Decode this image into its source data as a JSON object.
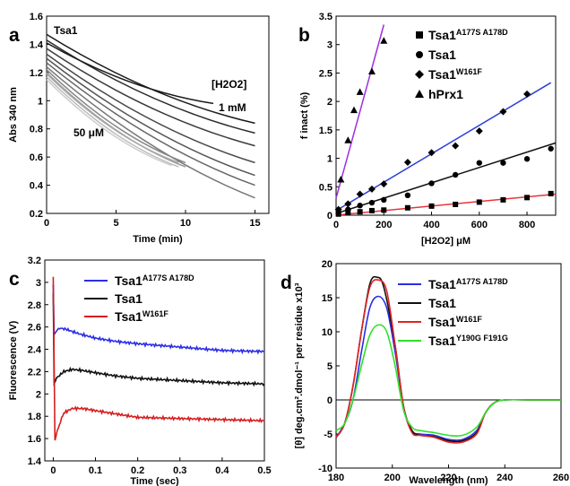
{
  "chart_data": [
    {
      "panel": "a",
      "type": "line",
      "title": "Tsa1",
      "xlabel": "Time (min)",
      "ylabel": "Abs 340 nm",
      "xlim": [
        0,
        16
      ],
      "ylim": [
        0.2,
        1.6
      ],
      "xticks": [
        0,
        5,
        10,
        15
      ],
      "yticks": [
        0.2,
        0.4,
        0.6,
        0.8,
        1.0,
        1.2,
        1.4,
        1.6
      ],
      "yticklabels": [
        "0.2",
        "0.4",
        "0.6",
        "0.8",
        "1",
        "1.2",
        "1.4",
        "1.6"
      ],
      "grid": false,
      "annotations": {
        "conc_header": "[H2O2]",
        "conc_high": "1 mM",
        "conc_low": "50 μM"
      },
      "series": [
        {
          "color": "#1a1a1a",
          "values": [
            [
              0,
              1.47
            ],
            [
              15,
              0.84
            ]
          ]
        },
        {
          "color": "#2b2b2b",
          "values": [
            [
              0,
              1.43
            ],
            [
              15,
              0.77
            ]
          ]
        },
        {
          "color": "#3a3a3a",
          "values": [
            [
              0,
              1.37
            ],
            [
              15,
              0.68
            ]
          ]
        },
        {
          "color": "#4a4a4a",
          "values": [
            [
              0,
              1.33
            ],
            [
              15,
              0.56
            ]
          ]
        },
        {
          "color": "#555555",
          "values": [
            [
              0,
              1.3
            ],
            [
              15,
              0.47
            ]
          ]
        },
        {
          "color": "#666666",
          "values": [
            [
              0,
              1.27
            ],
            [
              15,
              0.4
            ]
          ]
        },
        {
          "color": "#777777",
          "values": [
            [
              0,
              1.24
            ],
            [
              15,
              0.31
            ]
          ]
        },
        {
          "color": "#1a1a1a",
          "values": [
            [
              0,
              1.41
            ],
            [
              12,
              0.98
            ]
          ]
        },
        {
          "color": "#888888",
          "values": [
            [
              0,
              1.22
            ],
            [
              10,
              0.56
            ]
          ]
        },
        {
          "color": "#9a9a9a",
          "values": [
            [
              0,
              1.2
            ],
            [
              10,
              0.53
            ]
          ]
        },
        {
          "color": "#aaaaaa",
          "values": [
            [
              0,
              1.19
            ],
            [
              9.5,
              0.56
            ]
          ]
        },
        {
          "color": "#bbbbbb",
          "values": [
            [
              0,
              1.17
            ],
            [
              9.5,
              0.53
            ]
          ]
        },
        {
          "color": "#cccccc",
          "values": [
            [
              0,
              1.15
            ],
            [
              9,
              0.54
            ]
          ]
        }
      ]
    },
    {
      "panel": "b",
      "type": "scatter",
      "xlabel": "[H2O2] μM",
      "ylabel": "f inact (%)",
      "xlim": [
        0,
        920
      ],
      "ylim": [
        0,
        3.5
      ],
      "xticks": [
        0,
        200,
        400,
        600,
        800
      ],
      "yticks": [
        0,
        0.5,
        1,
        1.5,
        2,
        2.5,
        3,
        3.5
      ],
      "yticklabels": [
        "0",
        "0.5",
        "1",
        "1.5",
        "2",
        "2.5",
        "3",
        "3.5"
      ],
      "grid": false,
      "legend_position": "top-right",
      "series": [
        {
          "name": "Tsa1",
          "sup": "A177S A178D",
          "marker": "square",
          "line_color": "#e8343a",
          "values": [
            [
              10,
              0.02
            ],
            [
              50,
              0.04
            ],
            [
              100,
              0.06
            ],
            [
              150,
              0.08
            ],
            [
              200,
              0.09
            ],
            [
              300,
              0.13
            ],
            [
              400,
              0.16
            ],
            [
              500,
              0.19
            ],
            [
              600,
              0.23
            ],
            [
              700,
              0.27
            ],
            [
              800,
              0.31
            ],
            [
              900,
              0.38
            ]
          ],
          "fit": [
            [
              0,
              0
            ],
            [
              920,
              0.37
            ]
          ]
        },
        {
          "name": "Tsa1",
          "sup": "",
          "marker": "circle",
          "line_color": "#111111",
          "values": [
            [
              10,
              0.05
            ],
            [
              50,
              0.1
            ],
            [
              100,
              0.17
            ],
            [
              150,
              0.22
            ],
            [
              200,
              0.27
            ],
            [
              300,
              0.35
            ],
            [
              400,
              0.56
            ],
            [
              500,
              0.71
            ],
            [
              600,
              0.92
            ],
            [
              700,
              0.92
            ],
            [
              800,
              0.99
            ],
            [
              900,
              1.17
            ]
          ],
          "fit": [
            [
              0,
              0.03
            ],
            [
              920,
              1.27
            ]
          ]
        },
        {
          "name": "Tsa1",
          "sup": "W161F",
          "marker": "diamond",
          "line_color": "#2c3fd8",
          "values": [
            [
              10,
              0.1
            ],
            [
              50,
              0.2
            ],
            [
              100,
              0.37
            ],
            [
              150,
              0.46
            ],
            [
              200,
              0.55
            ],
            [
              300,
              0.93
            ],
            [
              400,
              1.1
            ],
            [
              500,
              1.22
            ],
            [
              600,
              1.48
            ],
            [
              700,
              1.82
            ],
            [
              800,
              2.13
            ]
          ],
          "fit": [
            [
              0,
              0.08
            ],
            [
              900,
              2.33
            ]
          ]
        },
        {
          "name": "hPrx1",
          "sup": "",
          "marker": "triangle",
          "line_color": "#9b30e0",
          "values": [
            [
              20,
              0.63
            ],
            [
              50,
              1.32
            ],
            [
              75,
              1.85
            ],
            [
              100,
              2.17
            ],
            [
              150,
              2.53
            ],
            [
              200,
              3.07
            ]
          ],
          "fit": [
            [
              0,
              0.3
            ],
            [
              200,
              3.35
            ]
          ]
        }
      ]
    },
    {
      "panel": "c",
      "type": "line",
      "xlabel": "Time (sec)",
      "ylabel": "Fluorescence (V)",
      "xlim": [
        -0.02,
        0.5
      ],
      "ylim": [
        1.4,
        3.2
      ],
      "xticks": [
        0,
        0.1,
        0.2,
        0.3,
        0.4,
        0.5
      ],
      "yticks": [
        1.4,
        1.6,
        1.8,
        2.0,
        2.2,
        2.4,
        2.6,
        2.8,
        3.0,
        3.2
      ],
      "xticklabels": [
        "0",
        "0.1",
        "0.2",
        "0.3",
        "0.4",
        "0.5"
      ],
      "yticklabels": [
        "1.4",
        "1.6",
        "1.8",
        "2",
        "2.2",
        "2.4",
        "2.6",
        "2.8",
        "3",
        "3.2"
      ],
      "grid": false,
      "legend_position": "top-right",
      "series": [
        {
          "name": "Tsa1",
          "sup": "A177S A178D",
          "color": "#2b2ee6",
          "values": [
            [
              0,
              2.98
            ],
            [
              0.002,
              2.52
            ],
            [
              0.008,
              2.57
            ],
            [
              0.015,
              2.59
            ],
            [
              0.03,
              2.58
            ],
            [
              0.06,
              2.54
            ],
            [
              0.1,
              2.5
            ],
            [
              0.15,
              2.47
            ],
            [
              0.2,
              2.45
            ],
            [
              0.3,
              2.42
            ],
            [
              0.4,
              2.39
            ],
            [
              0.5,
              2.38
            ]
          ]
        },
        {
          "name": "Tsa1",
          "sup": "",
          "color": "#111111",
          "values": [
            [
              0,
              2.9
            ],
            [
              0.002,
              2.1
            ],
            [
              0.01,
              2.15
            ],
            [
              0.025,
              2.2
            ],
            [
              0.045,
              2.22
            ],
            [
              0.07,
              2.21
            ],
            [
              0.1,
              2.19
            ],
            [
              0.15,
              2.16
            ],
            [
              0.2,
              2.14
            ],
            [
              0.3,
              2.12
            ],
            [
              0.4,
              2.1
            ],
            [
              0.5,
              2.09
            ]
          ]
        },
        {
          "name": "Tsa1",
          "sup": "W161F",
          "color": "#d61e1e",
          "values": [
            [
              0,
              3.05
            ],
            [
              0.004,
              1.58
            ],
            [
              0.012,
              1.7
            ],
            [
              0.025,
              1.83
            ],
            [
              0.045,
              1.87
            ],
            [
              0.07,
              1.87
            ],
            [
              0.1,
              1.85
            ],
            [
              0.15,
              1.82
            ],
            [
              0.2,
              1.79
            ],
            [
              0.3,
              1.78
            ],
            [
              0.4,
              1.77
            ],
            [
              0.5,
              1.76
            ]
          ]
        }
      ]
    },
    {
      "panel": "d",
      "type": "line",
      "xlabel": "Wavelength (nm)",
      "ylabel": "[θ] deg.cm².dmol⁻¹ per residue x10³",
      "xlim": [
        180,
        260
      ],
      "ylim": [
        -10,
        20
      ],
      "xticks": [
        180,
        200,
        220,
        240,
        260
      ],
      "yticks": [
        -10,
        -5,
        0,
        5,
        10,
        15,
        20
      ],
      "grid": false,
      "legend_position": "top-right",
      "series": [
        {
          "name": "Tsa1",
          "sup": "A177S A178D",
          "color": "#2a2ee3",
          "values": [
            [
              180,
              -5.5
            ],
            [
              183,
              -3.5
            ],
            [
              186,
              0
            ],
            [
              189,
              7
            ],
            [
              192,
              13.5
            ],
            [
              195,
              15.2
            ],
            [
              198,
              13.5
            ],
            [
              201,
              7
            ],
            [
              204,
              -1
            ],
            [
              207,
              -4.5
            ],
            [
              210,
              -5
            ],
            [
              215,
              -5.2
            ],
            [
              220,
              -5.8
            ],
            [
              225,
              -5.8
            ],
            [
              230,
              -4.5
            ],
            [
              233,
              -2
            ],
            [
              236,
              -0.5
            ],
            [
              240,
              0
            ],
            [
              250,
              0
            ],
            [
              260,
              0
            ]
          ]
        },
        {
          "name": "Tsa1",
          "sup": "",
          "color": "#111111",
          "values": [
            [
              180,
              -5.5
            ],
            [
              183,
              -3.5
            ],
            [
              186,
              2
            ],
            [
              189,
              10
            ],
            [
              192,
              17
            ],
            [
              194.5,
              18
            ],
            [
              197,
              16.5
            ],
            [
              201,
              8
            ],
            [
              204,
              -1
            ],
            [
              207,
              -4.5
            ],
            [
              210,
              -5.2
            ],
            [
              215,
              -5.4
            ],
            [
              220,
              -6
            ],
            [
              225,
              -6
            ],
            [
              230,
              -4.8
            ],
            [
              233,
              -2
            ],
            [
              236,
              -0.5
            ],
            [
              240,
              0
            ],
            [
              250,
              0
            ],
            [
              260,
              0
            ]
          ]
        },
        {
          "name": "Tsa1",
          "sup": "W161F",
          "color": "#e02424",
          "values": [
            [
              180,
              -5.5
            ],
            [
              183,
              -3.5
            ],
            [
              186,
              2
            ],
            [
              189,
              10
            ],
            [
              192,
              16.5
            ],
            [
              195,
              17.6
            ],
            [
              198,
              16
            ],
            [
              201,
              8
            ],
            [
              204,
              -1
            ],
            [
              207,
              -4.8
            ],
            [
              210,
              -5.2
            ],
            [
              215,
              -5.5
            ],
            [
              220,
              -6.2
            ],
            [
              225,
              -6.2
            ],
            [
              230,
              -5
            ],
            [
              233,
              -2
            ],
            [
              236,
              -0.5
            ],
            [
              240,
              0
            ],
            [
              250,
              0
            ],
            [
              260,
              0
            ]
          ]
        },
        {
          "name": "Tsa1",
          "sup": "Y190G F191G",
          "color": "#2ee02a",
          "values": [
            [
              180,
              -4.5
            ],
            [
              183,
              -3.5
            ],
            [
              186,
              0
            ],
            [
              189,
              5
            ],
            [
              192,
              9.5
            ],
            [
              195,
              11
            ],
            [
              198,
              10
            ],
            [
              201,
              5
            ],
            [
              204,
              -1.5
            ],
            [
              207,
              -4
            ],
            [
              210,
              -4.5
            ],
            [
              215,
              -4.8
            ],
            [
              220,
              -5.2
            ],
            [
              225,
              -5.2
            ],
            [
              230,
              -4
            ],
            [
              233,
              -2
            ],
            [
              236,
              -0.5
            ],
            [
              240,
              0
            ],
            [
              250,
              0
            ],
            [
              260,
              0
            ]
          ]
        }
      ]
    }
  ]
}
